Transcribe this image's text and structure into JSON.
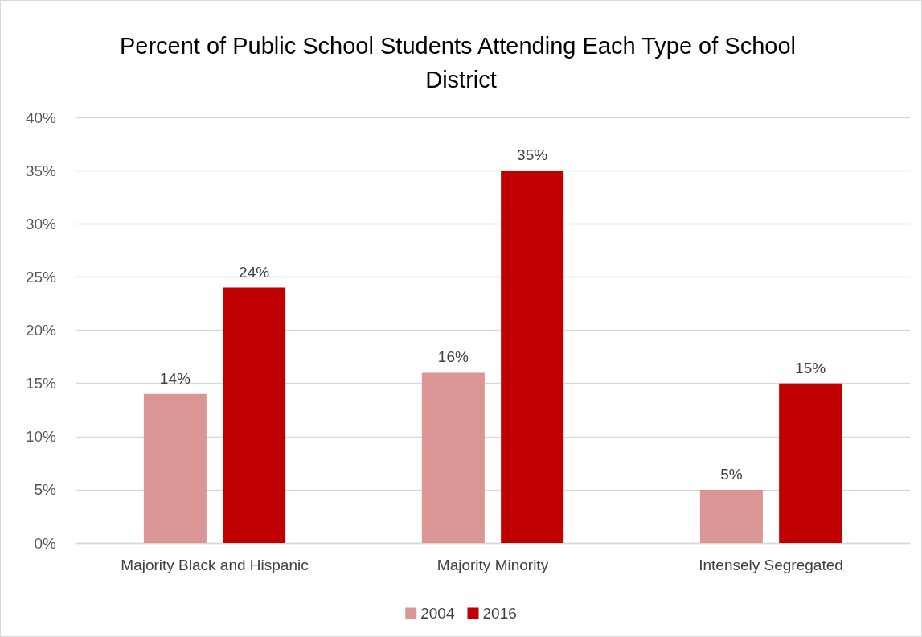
{
  "chart_data": {
    "type": "bar",
    "title": "Percent of Public School Students Attending Each Type of School District",
    "categories": [
      "Majority Black and Hispanic",
      "Majority Minority",
      "Intensely Segregated"
    ],
    "series": [
      {
        "name": "2004",
        "color": "#d99694",
        "values": [
          14,
          16,
          5
        ],
        "value_labels": [
          "14%",
          "16%",
          "5%"
        ]
      },
      {
        "name": "2016",
        "color": "#c00000",
        "values": [
          24,
          35,
          15
        ],
        "value_labels": [
          "24%",
          "35%",
          "15%"
        ]
      }
    ],
    "ylim": [
      0,
      40
    ],
    "yticks": [
      {
        "value": 0,
        "label": "0%"
      },
      {
        "value": 5,
        "label": "5%"
      },
      {
        "value": 10,
        "label": "10%"
      },
      {
        "value": 15,
        "label": "15%"
      },
      {
        "value": 20,
        "label": "20%"
      },
      {
        "value": 25,
        "label": "25%"
      },
      {
        "value": 30,
        "label": "30%"
      },
      {
        "value": 35,
        "label": "35%"
      },
      {
        "value": 40,
        "label": "40%"
      }
    ],
    "grid": "y",
    "legend": "bottom"
  }
}
